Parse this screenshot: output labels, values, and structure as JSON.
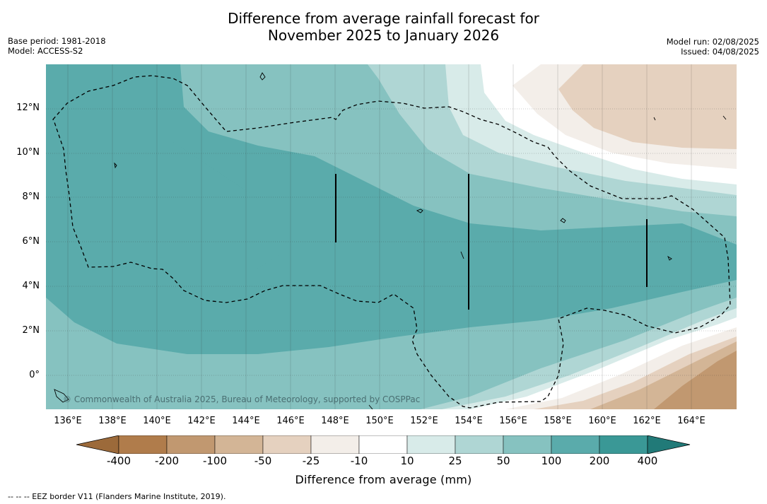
{
  "header": {
    "title_line1": "Difference from average rainfall forecast for",
    "title_line2": "November 2025 to January 2026",
    "base_period": "Base period: 1981-2018",
    "model": "Model: ACCESS-S2",
    "model_run": "Model run: 02/08/2025",
    "issued": "Issued: 04/08/2025"
  },
  "map": {
    "copyright": "© Commonwealth of Australia 2025, Bureau of Meteorology, supported by COSPPac",
    "lat_labels": [
      "12°N",
      "10°N",
      "8°N",
      "6°N",
      "4°N",
      "2°N",
      "0°"
    ],
    "lon_labels": [
      "136°E",
      "138°E",
      "140°E",
      "142°E",
      "144°E",
      "146°E",
      "148°E",
      "150°E",
      "152°E",
      "154°E",
      "156°E",
      "158°E",
      "160°E",
      "162°E",
      "164°E"
    ]
  },
  "legend": {
    "title": "Difference from average (mm)",
    "ticks": [
      "-400",
      "-200",
      "-100",
      "-50",
      "-25",
      "-10",
      "10",
      "25",
      "50",
      "100",
      "200",
      "400"
    ],
    "colors": {
      "lt_minus400": "#9c6a3a",
      "minus400_minus200": "#b07c4b",
      "minus200_minus100": "#c19870",
      "minus100_minus50": "#d3b596",
      "minus50_minus25": "#e5d1bf",
      "minus25_minus10": "#f3eee9",
      "minus10_10": "#ffffff",
      "p10_25": "#d8ebe9",
      "p25_50": "#afd6d4",
      "p50_100": "#86c2c0",
      "p100_200": "#5aabab",
      "p200_400": "#3a9896",
      "gt_400": "#217a78"
    }
  },
  "footnote": "-- -- -- EEZ border V11 (Flanders Marine Institute, 2019)."
}
